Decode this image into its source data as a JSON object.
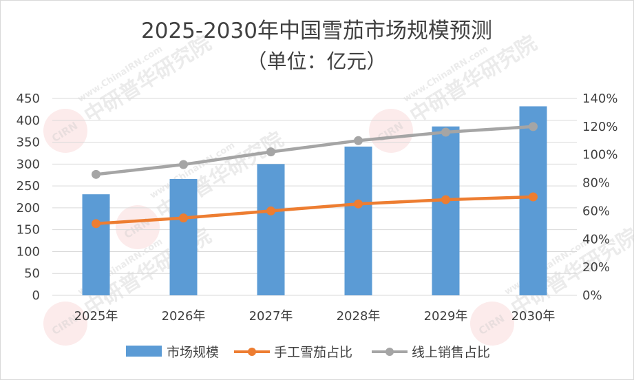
{
  "chart_data": {
    "type": "bar+line",
    "title": "2025-2030年中国雪茄市场规模预测",
    "subtitle": "（单位：亿元）",
    "categories": [
      "2025年",
      "2026年",
      "2027年",
      "2028年",
      "2029年",
      "2030年"
    ],
    "bar_series": {
      "name": "市场规模",
      "values": [
        231,
        266,
        300,
        340,
        386,
        432
      ],
      "axis": "left",
      "color": "#5b9bd5"
    },
    "line_series": [
      {
        "name": "手工雪茄占比",
        "values": [
          0.51,
          0.55,
          0.6,
          0.65,
          0.68,
          0.7
        ],
        "axis": "right",
        "color": "#ed7d31"
      },
      {
        "name": "线上销售占比",
        "values": [
          0.86,
          0.93,
          1.02,
          1.1,
          1.16,
          1.2
        ],
        "axis": "right",
        "color": "#a5a5a5"
      }
    ],
    "left_axis": {
      "min": 0,
      "max": 450,
      "step": 50,
      "tick_labels": [
        "0",
        "50",
        "100",
        "150",
        "200",
        "250",
        "300",
        "350",
        "400",
        "450"
      ]
    },
    "right_axis": {
      "min": 0,
      "max": 1.4,
      "step": 0.2,
      "tick_labels": [
        "0%",
        "20%",
        "40%",
        "60%",
        "80%",
        "100%",
        "120%",
        "140%"
      ]
    },
    "grid": "horizontal",
    "legend_position": "bottom"
  },
  "legend": {
    "bar_label": "市场规模",
    "line1_label": "手工雪茄占比",
    "line2_label": "线上销售占比"
  },
  "watermark": {
    "brand_text": "中研普华研究院",
    "url_text": "www.ChinaIRN.com",
    "logo_text": "CIRN"
  }
}
